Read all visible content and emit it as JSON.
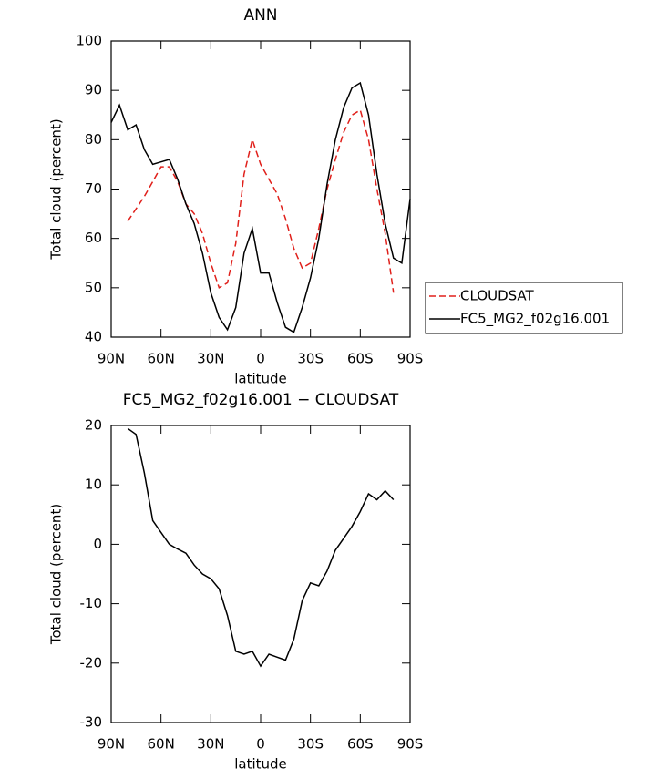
{
  "chart_data": [
    {
      "type": "line",
      "title": "ANN",
      "xlabel": "latitude",
      "ylabel": "Total cloud (percent)",
      "x": [
        90,
        85,
        80,
        75,
        70,
        65,
        60,
        55,
        50,
        45,
        40,
        35,
        30,
        25,
        20,
        15,
        10,
        5,
        0,
        -5,
        -10,
        -15,
        -20,
        -25,
        -30,
        -35,
        -40,
        -45,
        -50,
        -55,
        -60,
        -65,
        -70,
        -75,
        -80,
        -85,
        -90
      ],
      "series": [
        {
          "name": "CLOUDSAT",
          "color": "#e0201b",
          "dashed": true,
          "values": [
            null,
            null,
            63.5,
            66,
            68.5,
            71.5,
            74.5,
            74.5,
            71.5,
            67,
            65,
            61,
            55,
            50,
            51,
            59,
            73,
            80,
            75,
            72,
            69,
            64,
            58,
            54,
            55,
            62,
            70,
            76,
            81.5,
            85,
            86,
            80,
            70,
            61,
            49,
            null,
            null
          ]
        },
        {
          "name": "FC5_MG2_f02g16.001",
          "color": "#000000",
          "dashed": false,
          "values": [
            83.5,
            87,
            82,
            83,
            78,
            75,
            75.5,
            76,
            72,
            67,
            63,
            57,
            49,
            44,
            41.5,
            46,
            57,
            62,
            53,
            53,
            47,
            42,
            41,
            46,
            52,
            60,
            71,
            80,
            86.5,
            90.5,
            91.5,
            85,
            73,
            63,
            56,
            55,
            68
          ]
        }
      ],
      "xlim": [
        90,
        -90
      ],
      "xticks": [
        {
          "value": 90,
          "label": "90N"
        },
        {
          "value": 60,
          "label": "60N"
        },
        {
          "value": 30,
          "label": "30N"
        },
        0,
        {
          "value": -30,
          "label": "30S"
        },
        {
          "value": -60,
          "label": "60S"
        },
        {
          "value": -90,
          "label": "90S"
        }
      ],
      "ylim": [
        40,
        100
      ],
      "yticks": [
        40,
        50,
        60,
        70,
        80,
        90,
        100
      ],
      "legend": "outside right"
    },
    {
      "type": "line",
      "title": "FC5_MG2_f02g16.001 − CLOUDSAT",
      "xlabel": "latitude",
      "ylabel": "Total cloud (percent)",
      "x": [
        80,
        75,
        70,
        65,
        60,
        55,
        50,
        45,
        40,
        35,
        30,
        25,
        20,
        15,
        10,
        5,
        0,
        -5,
        -10,
        -15,
        -20,
        -25,
        -30,
        -35,
        -40,
        -45,
        -50,
        -55,
        -60,
        -65,
        -70,
        -75,
        -80
      ],
      "series": [
        {
          "color": "#000000",
          "dashed": false,
          "values": [
            19.5,
            18.5,
            12,
            4,
            2,
            0,
            -0.8,
            -1.5,
            -3.5,
            -5,
            -5.8,
            -7.5,
            -12,
            -18,
            -18.5,
            -18,
            -20.5,
            -18.5,
            -19,
            -19.5,
            -16,
            -9.5,
            -6.5,
            -7,
            -4.5,
            -1,
            1,
            3,
            5.5,
            8.5,
            7.5,
            9,
            7.5
          ]
        }
      ],
      "xlim": [
        90,
        -90
      ],
      "xticks": [
        {
          "value": 90,
          "label": "90N"
        },
        {
          "value": 60,
          "label": "60N"
        },
        {
          "value": 30,
          "label": "30N"
        },
        0,
        {
          "value": -30,
          "label": "30S"
        },
        {
          "value": -60,
          "label": "60S"
        },
        {
          "value": -90,
          "label": "90S"
        }
      ],
      "ylim": [
        -30,
        20
      ],
      "yticks": [
        -30,
        -20,
        -10,
        0,
        10,
        20
      ]
    }
  ]
}
